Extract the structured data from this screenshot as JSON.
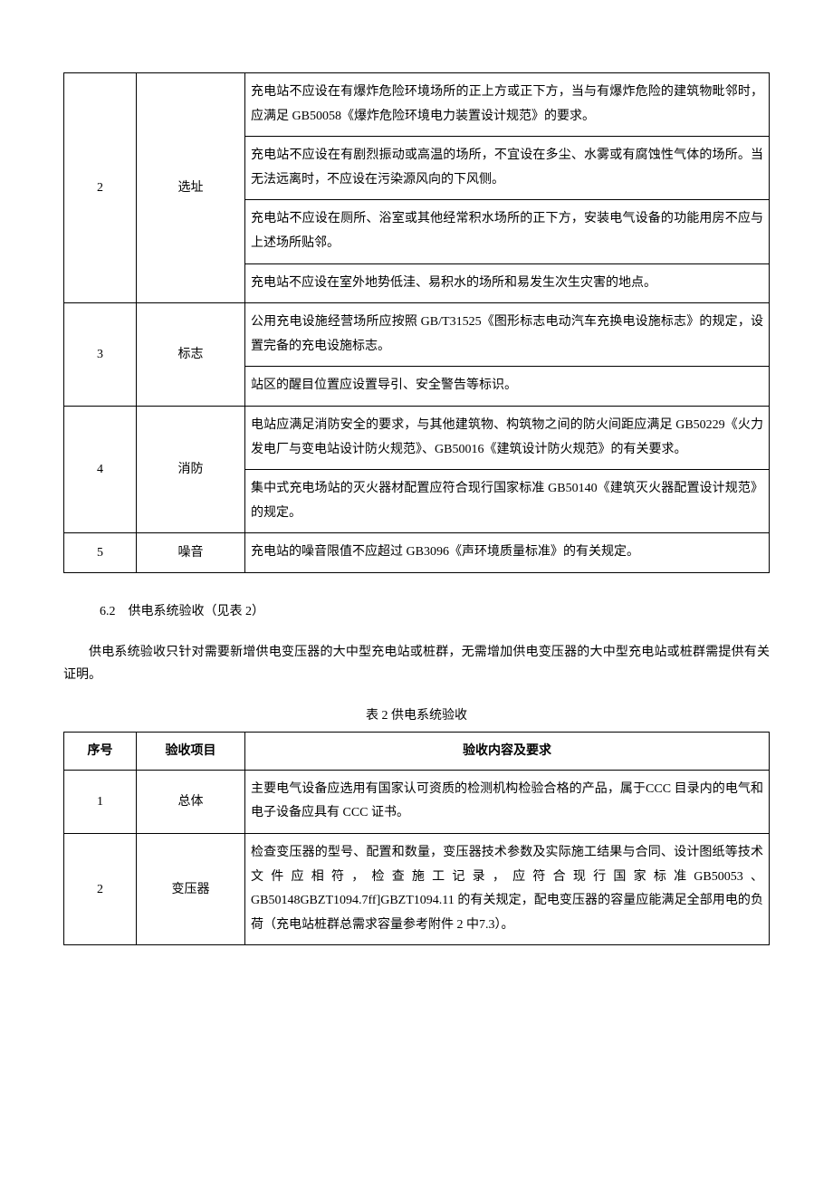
{
  "table1": {
    "rows": [
      {
        "num": "2",
        "item": "选址",
        "contents": [
          "充电站不应设在有爆炸危险环境场所的正上方或正下方，当与有爆炸危险的建筑物毗邻时，应满足 GB50058《爆炸危险环境电力装置设计规范》的要求。",
          "充电站不应设在有剧烈振动或高温的场所，不宜设在多尘、水雾或有腐蚀性气体的场所。当无法远离时，不应设在污染源风向的下风侧。",
          "充电站不应设在厕所、浴室或其他经常积水场所的正下方，安装电气设备的功能用房不应与上述场所贴邻。",
          "充电站不应设在室外地势低洼、易积水的场所和易发生次生灾害的地点。"
        ]
      },
      {
        "num": "3",
        "item": "标志",
        "contents": [
          "公用充电设施经营场所应按照 GB/T31525《图形标志电动汽车充换电设施标志》的规定，设置完备的充电设施标志。",
          "站区的醒目位置应设置导引、安全警告等标识。"
        ]
      },
      {
        "num": "4",
        "item": "消防",
        "contents": [
          "电站应满足消防安全的要求，与其他建筑物、构筑物之间的防火间距应满足 GB50229《火力发电厂与变电站设计防火规范》、GB50016《建筑设计防火规范》的有关要求。",
          "集中式充电场站的灭火器材配置应符合现行国家标准 GB50140《建筑灭火器配置设计规范》的规定。"
        ]
      },
      {
        "num": "5",
        "item": "噪音",
        "contents": [
          "充电站的噪音限值不应超过 GB3096《声环境质量标准》的有关规定。"
        ]
      }
    ]
  },
  "section": {
    "heading": "6.2　供电系统验收（见表 2）",
    "paragraph": "供电系统验收只针对需要新增供电变压器的大中型充电站或桩群，无需增加供电变压器的大中型充电站或桩群需提供有关证明。"
  },
  "table2": {
    "caption": "表 2 供电系统验收",
    "headers": {
      "num": "序号",
      "item": "验收项目",
      "content": "验收内容及要求"
    },
    "rows": [
      {
        "num": "1",
        "item": "总体",
        "contents": [
          "主要电气设备应选用有国家认可资质的检测机构检验合格的产品，属于CCC 目录内的电气和电子设备应具有 CCC 证书。"
        ]
      },
      {
        "num": "2",
        "item": "变压器",
        "contents": [
          "检查变压器的型号、配置和数量，变压器技术参数及实际施工结果与合同、设计图纸等技术文件应相符，检查施工记录，应符合现行国家标准GB50053、GB50148GBZT1094.7ff]GBZT1094.11 的有关规定，配电变压器的容量应能满足全部用电的负荷（充电站桩群总需求容量参考附件 2 中7.3）。"
        ]
      }
    ]
  }
}
